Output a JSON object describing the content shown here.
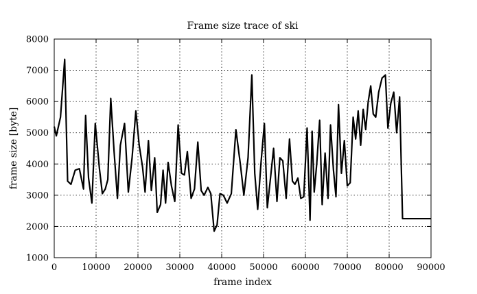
{
  "chart_data": {
    "type": "line",
    "title": "Frame size trace of ski",
    "xlabel": "frame index",
    "ylabel": "frame size [byte]",
    "xlim": [
      0,
      90000
    ],
    "ylim": [
      1000,
      8000
    ],
    "xticks": [
      0,
      10000,
      20000,
      30000,
      40000,
      50000,
      60000,
      70000,
      80000,
      90000
    ],
    "yticks": [
      1000,
      2000,
      3000,
      4000,
      5000,
      6000,
      7000,
      8000
    ],
    "grid": true,
    "series": [
      {
        "x": [
          0,
          500,
          1500,
          2500,
          3200,
          4000,
          5000,
          6000,
          7000,
          7500,
          8200,
          9000,
          9800,
          10800,
          11500,
          12200,
          12800,
          13500,
          14300,
          15100,
          15800,
          16800,
          17700,
          18600,
          19500,
          20300,
          21100,
          21700,
          22500,
          23200,
          24000,
          24600,
          25400,
          26000,
          26600,
          27200,
          28000,
          28800,
          29600,
          30400,
          31100,
          31800,
          32700,
          33500,
          34300,
          35100,
          35800,
          36700,
          37400,
          38200,
          38900,
          39600,
          40400,
          41300,
          42300,
          43400,
          44500,
          45300,
          46300,
          47200,
          47900,
          48600,
          49400,
          50200,
          50900,
          51700,
          52400,
          53200,
          53900,
          54600,
          55400,
          56200,
          56900,
          57500,
          58200,
          58900,
          59600,
          60400,
          61100,
          61600,
          62100,
          62700,
          63400,
          64000,
          64700,
          65400,
          66000,
          66700,
          67300,
          67900,
          68600,
          69300,
          70000,
          70700,
          71400,
          72000,
          72600,
          73200,
          73800,
          74400,
          75000,
          75600,
          76200,
          76800,
          77500,
          78300,
          79100,
          79700,
          80400,
          81100,
          81800,
          82500,
          83200,
          83900,
          84600,
          85300,
          86000,
          86600,
          87300,
          88000,
          88700,
          89500,
          90000
        ],
        "y": [
          5200,
          4900,
          5500,
          7350,
          3450,
          3350,
          3800,
          3850,
          3200,
          5550,
          3550,
          2750,
          5300,
          3850,
          3050,
          3200,
          3500,
          6100,
          4400,
          2900,
          4600,
          5300,
          3100,
          4200,
          5700,
          4600,
          3900,
          3100,
          4750,
          3150,
          4200,
          2450,
          2700,
          3800,
          2750,
          4050,
          3300,
          2800,
          5250,
          3700,
          3650,
          4400,
          2900,
          3200,
          4700,
          3150,
          3000,
          3250,
          3050,
          1850,
          2050,
          3050,
          3000,
          2750,
          3050,
          5100,
          3950,
          3000,
          4200,
          6850,
          3700,
          2550,
          4050,
          5300,
          2600,
          3600,
          4500,
          2800,
          4200,
          4100,
          2900,
          4800,
          3450,
          3350,
          3550,
          2900,
          2950,
          5150,
          2200,
          5050,
          3100,
          4000,
          5400,
          2700,
          4350,
          2900,
          5250,
          3800,
          2950,
          5900,
          3700,
          4750,
          3300,
          3400,
          5500,
          4800,
          5700,
          4600,
          5750,
          5100,
          6000,
          6500,
          5600,
          5500,
          6300,
          6750,
          6850,
          5150,
          5950,
          6300,
          5000,
          6150,
          2250,
          2250,
          2250,
          2250,
          2250,
          2250,
          2250,
          2250,
          2250,
          2250,
          2250
        ]
      }
    ]
  }
}
